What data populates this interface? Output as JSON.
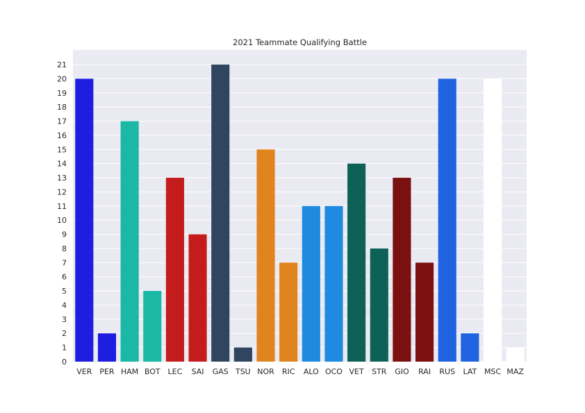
{
  "chart_data": {
    "type": "bar",
    "title": "2021 Teammate Qualifying Battle",
    "xlabel": "",
    "ylabel": "",
    "ylim": [
      0,
      21
    ],
    "yticks": [
      0,
      1,
      2,
      3,
      4,
      5,
      6,
      7,
      8,
      9,
      10,
      11,
      12,
      13,
      14,
      15,
      16,
      17,
      18,
      19,
      20,
      21
    ],
    "grid": true,
    "categories": [
      "VER",
      "PER",
      "HAM",
      "BOT",
      "LEC",
      "SAI",
      "GAS",
      "TSU",
      "NOR",
      "RIC",
      "ALO",
      "OCO",
      "VET",
      "STR",
      "GIO",
      "RAI",
      "RUS",
      "LAT",
      "MSC",
      "MAZ"
    ],
    "values": [
      20,
      2,
      17,
      5,
      13,
      9,
      21,
      1,
      15,
      7,
      11,
      11,
      14,
      8,
      13,
      7,
      20,
      2,
      20,
      1
    ],
    "colors": [
      "#1e1ee0",
      "#1e1ee0",
      "#1ab8a5",
      "#1ab8a5",
      "#c41c1c",
      "#c41c1c",
      "#2f4560",
      "#2f4560",
      "#e0841e",
      "#e0841e",
      "#1e8ae0",
      "#1e8ae0",
      "#0d6157",
      "#0d6157",
      "#7a1010",
      "#7a1010",
      "#1f63e0",
      "#1f63e0",
      "#ffffff",
      "#ffffff"
    ],
    "background": "#eaeaf2"
  }
}
